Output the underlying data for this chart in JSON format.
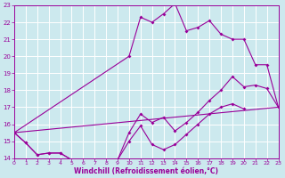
{
  "title": "",
  "xlabel": "Windchill (Refroidissement éolien,°C)",
  "bg_color": "#cce9ee",
  "grid_color": "#ffffff",
  "line_color": "#990099",
  "xmin": 0,
  "xmax": 23,
  "ymin": 14,
  "ymax": 23,
  "yticks": [
    14,
    15,
    16,
    17,
    18,
    19,
    20,
    21,
    22,
    23
  ],
  "xticks": [
    0,
    1,
    2,
    3,
    4,
    5,
    6,
    7,
    8,
    9,
    10,
    11,
    12,
    13,
    14,
    15,
    16,
    17,
    18,
    19,
    20,
    21,
    22,
    23
  ],
  "line1_x": [
    0,
    1,
    2,
    3,
    4,
    5,
    6,
    7,
    8,
    9,
    10,
    11,
    12,
    13,
    14,
    15,
    16,
    17,
    18,
    19,
    20
  ],
  "line1_y": [
    15.5,
    14.9,
    14.2,
    14.3,
    14.3,
    13.9,
    13.7,
    13.7,
    13.9,
    13.9,
    15.0,
    15.9,
    14.8,
    14.5,
    14.8,
    15.4,
    16.0,
    16.6,
    17.0,
    17.2,
    16.9
  ],
  "line2_x": [
    0,
    1,
    2,
    3,
    4,
    5,
    6,
    7,
    8,
    9,
    10,
    11,
    12,
    13,
    14,
    15,
    16,
    17,
    18,
    19,
    20,
    21,
    22,
    23
  ],
  "line2_y": [
    15.5,
    14.9,
    14.2,
    14.3,
    14.3,
    13.9,
    13.7,
    13.7,
    13.9,
    13.9,
    15.5,
    16.6,
    16.1,
    16.4,
    15.6,
    16.1,
    16.7,
    17.4,
    18.0,
    18.8,
    18.2,
    18.3,
    18.1,
    17.0
  ],
  "line3_x": [
    0,
    10,
    11,
    12,
    13,
    14,
    15,
    16,
    17,
    18,
    19,
    20,
    21,
    22,
    23
  ],
  "line3_y": [
    15.5,
    20.0,
    22.3,
    22.0,
    22.5,
    23.1,
    21.5,
    21.7,
    22.1,
    21.3,
    21.0,
    21.0,
    19.5,
    19.5,
    17.0
  ],
  "line4_x": [
    0,
    23
  ],
  "line4_y": [
    15.5,
    17.0
  ]
}
